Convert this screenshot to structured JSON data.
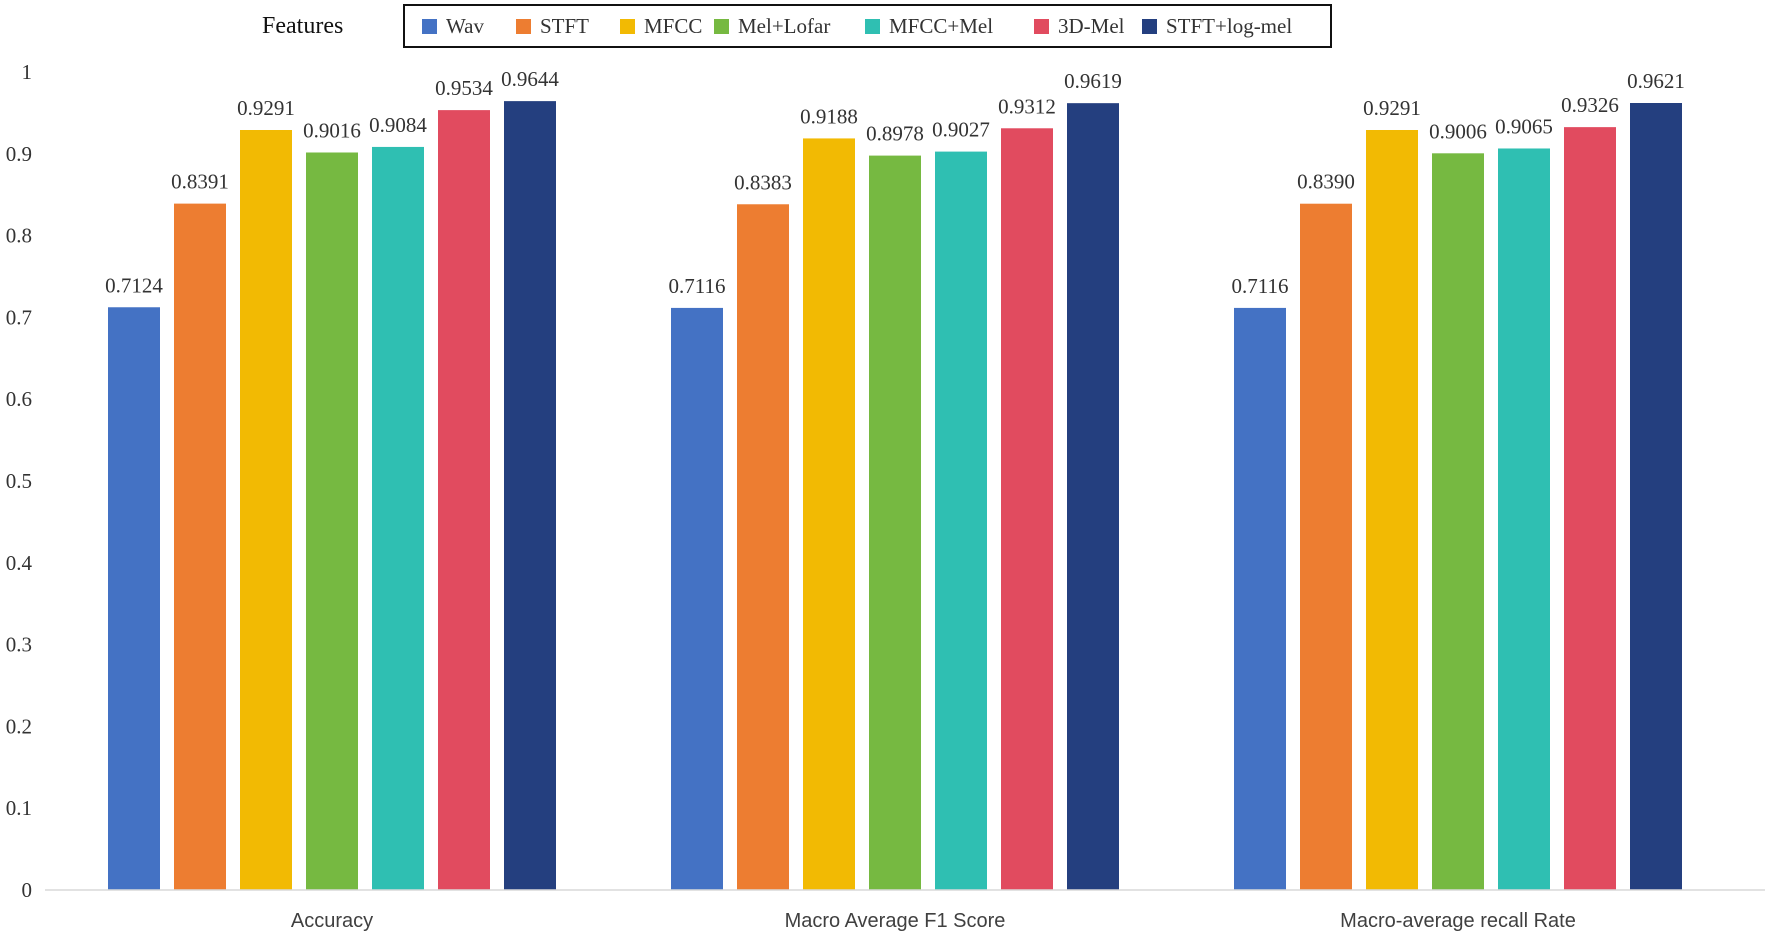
{
  "chart_data": {
    "type": "bar",
    "title": "",
    "xlabel": "",
    "ylabel": "",
    "ylim": [
      0,
      1
    ],
    "yticks": [
      "0",
      "0.1",
      "0.2",
      "0.3",
      "0.4",
      "0.5",
      "0.6",
      "0.7",
      "0.8",
      "0.9",
      "1"
    ],
    "grid": false,
    "legend_title": "Features",
    "legend_position": "top",
    "categories": [
      "Accuracy",
      "Macro Average F1 Score",
      "Macro-average recall Rate"
    ],
    "series": [
      {
        "name": "Wav",
        "color": "#4472C4",
        "values": [
          0.7124,
          0.7116,
          0.7116
        ],
        "labels": [
          "0.7124",
          "0.7116",
          "0.7116"
        ]
      },
      {
        "name": "STFT",
        "color": "#ED7D31",
        "values": [
          0.8391,
          0.8383,
          0.839
        ],
        "labels": [
          "0.8391",
          "0.8383",
          "0.8390"
        ]
      },
      {
        "name": "MFCC",
        "color": "#F2BA03",
        "values": [
          0.9291,
          0.9188,
          0.9291
        ],
        "labels": [
          "0.9291",
          "0.9188",
          "0.9291"
        ]
      },
      {
        "name": "Mel+Lofar",
        "color": "#76B941",
        "values": [
          0.9016,
          0.8978,
          0.9006
        ],
        "labels": [
          "0.9016",
          "0.8978",
          "0.9006"
        ]
      },
      {
        "name": "MFCC+Mel",
        "color": "#2FBFB2",
        "values": [
          0.9084,
          0.9027,
          0.9065
        ],
        "labels": [
          "0.9084",
          "0.9027",
          "0.9065"
        ]
      },
      {
        "name": "3D-Mel",
        "color": "#E14B5F",
        "values": [
          0.9534,
          0.9312,
          0.9326
        ],
        "labels": [
          "0.9534",
          "0.9312",
          "0.9326"
        ]
      },
      {
        "name": "STFT+log-mel",
        "color": "#243F7F",
        "values": [
          0.9644,
          0.9619,
          0.9621
        ],
        "labels": [
          "0.9644",
          "0.9619",
          "0.9621"
        ]
      }
    ]
  }
}
